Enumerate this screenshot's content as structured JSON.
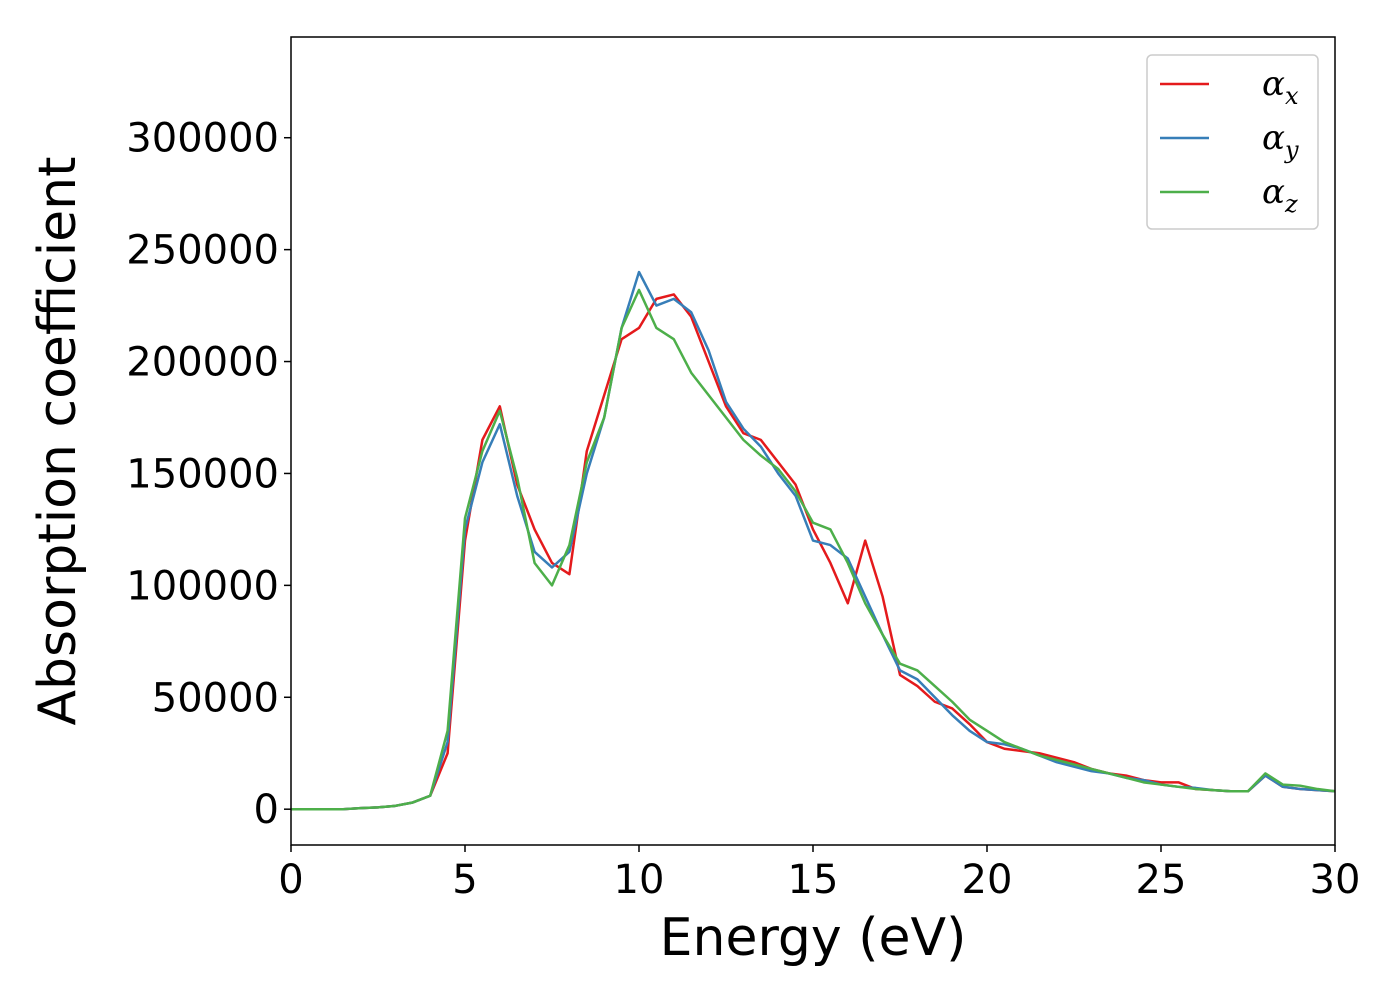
{
  "chart_data": {
    "type": "line",
    "xlabel": "Energy (eV)",
    "ylabel": "Absorption coefficient",
    "x": [
      0,
      0.5,
      1,
      1.5,
      2,
      2.5,
      3,
      3.5,
      4,
      4.5,
      5,
      5.5,
      6,
      6.5,
      7,
      7.5,
      8,
      8.5,
      9,
      9.5,
      10,
      10.5,
      11,
      11.5,
      12,
      12.5,
      13,
      13.5,
      14,
      14.5,
      15,
      15.5,
      16,
      16.5,
      17,
      17.5,
      18,
      18.5,
      19,
      19.5,
      20,
      20.5,
      21,
      21.5,
      22,
      22.5,
      23,
      23.5,
      24,
      24.5,
      25,
      25.5,
      26,
      26.5,
      27,
      27.5,
      28,
      28.5,
      29,
      29.5,
      30
    ],
    "series": [
      {
        "name": "αx",
        "color": "#e41a1c",
        "values": [
          0,
          0,
          0,
          0,
          500,
          800,
          1500,
          3000,
          6000,
          25000,
          120000,
          165000,
          180000,
          145000,
          125000,
          110000,
          105000,
          160000,
          185000,
          210000,
          215000,
          228000,
          230000,
          220000,
          200000,
          180000,
          168000,
          165000,
          155000,
          145000,
          125000,
          110000,
          92000,
          120000,
          95000,
          60000,
          55000,
          48000,
          45000,
          38000,
          30000,
          27000,
          26000,
          25000,
          23000,
          21000,
          18000,
          16000,
          15000,
          13000,
          12000,
          12000,
          9000,
          8500,
          8000,
          8000,
          15000,
          10000,
          9000,
          8500,
          8000
        ]
      },
      {
        "name": "αy",
        "color": "#377eb8",
        "values": [
          0,
          0,
          0,
          0,
          500,
          800,
          1500,
          3000,
          6000,
          30000,
          125000,
          155000,
          172000,
          140000,
          115000,
          108000,
          115000,
          150000,
          175000,
          215000,
          240000,
          225000,
          228000,
          222000,
          205000,
          182000,
          170000,
          162000,
          150000,
          140000,
          120000,
          118000,
          112000,
          95000,
          78000,
          62000,
          58000,
          50000,
          42000,
          35000,
          30000,
          29000,
          27000,
          24000,
          21000,
          19000,
          17000,
          16000,
          14000,
          13000,
          11000,
          10000,
          9500,
          8500,
          8000,
          8000,
          15000,
          10000,
          9000,
          8500,
          8000
        ]
      },
      {
        "name": "αz",
        "color": "#4daf4a",
        "values": [
          0,
          0,
          0,
          0,
          500,
          800,
          1500,
          3000,
          6000,
          35000,
          130000,
          160000,
          178000,
          148000,
          110000,
          100000,
          118000,
          155000,
          175000,
          215000,
          232000,
          215000,
          210000,
          195000,
          185000,
          175000,
          165000,
          158000,
          152000,
          142000,
          128000,
          125000,
          110000,
          92000,
          78000,
          65000,
          62000,
          55000,
          48000,
          40000,
          35000,
          30000,
          27000,
          24000,
          22000,
          20000,
          18000,
          16000,
          14000,
          12000,
          11000,
          10000,
          9000,
          8500,
          8000,
          8000,
          16000,
          11000,
          10500,
          9000,
          8000
        ]
      }
    ],
    "xlim": [
      0,
      30
    ],
    "xticks": [
      0,
      5,
      10,
      15,
      20,
      25,
      30
    ],
    "ylim": [
      -16000,
      345000
    ],
    "yticks": [
      0,
      50000,
      100000,
      150000,
      200000,
      250000,
      300000
    ],
    "legend": "upper right"
  }
}
